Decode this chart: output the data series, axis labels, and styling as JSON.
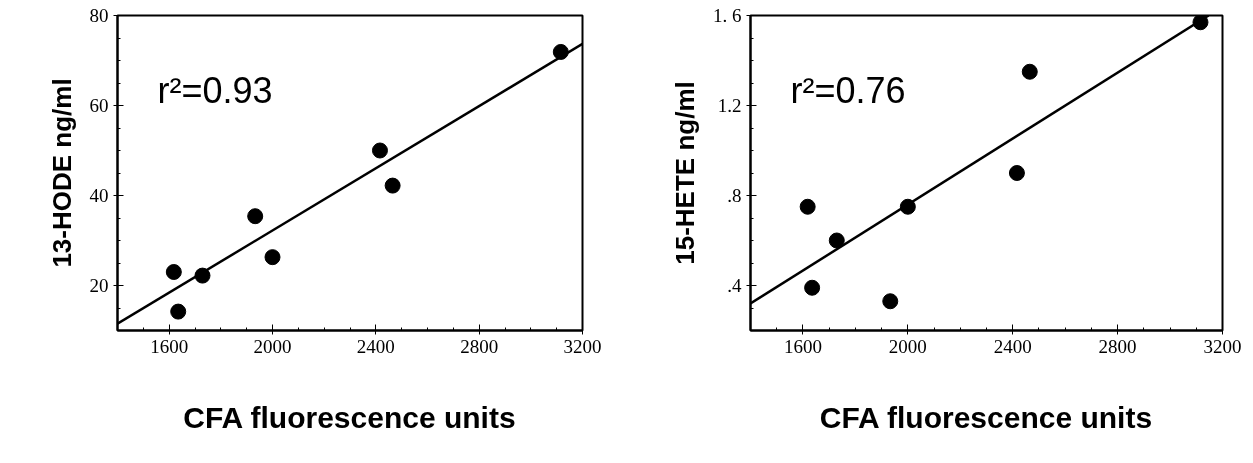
{
  "chart_data": [
    {
      "type": "scatter",
      "xlabel": "CFA fluorescence units",
      "ylabel": "13-HODE ng/ml",
      "annotations": [
        "r²=0.93"
      ],
      "grid": false,
      "xlim": [
        1400,
        3200
      ],
      "xticks": [
        1600,
        2000,
        2400,
        2800,
        3200
      ],
      "ylim": [
        10,
        80
      ],
      "yticks": [
        20,
        40,
        60,
        80
      ],
      "series": [
        {
          "marker": "circle",
          "color": "#000000",
          "x": [
            1618,
            1635,
            1729,
            1933,
            2000,
            2416,
            2465,
            3116
          ],
          "values": [
            23.0,
            14.2,
            22.2,
            35.4,
            26.3,
            50.0,
            42.2,
            71.9
          ]
        },
        {
          "type": "line",
          "color": "#000000",
          "x": [
            1400,
            3200
          ],
          "values": [
            11.5,
            73.7
          ]
        }
      ]
    },
    {
      "type": "scatter",
      "xlabel": "CFA fluorescence units",
      "ylabel": "15-HETE ng/ml",
      "annotations": [
        "r²=0.76"
      ],
      "grid": false,
      "xlim": [
        1400,
        3200
      ],
      "xticks": [
        1600,
        2000,
        2400,
        2800,
        3200
      ],
      "ylim": [
        0.2,
        1.6
      ],
      "yticks": [
        {
          "value": 0.4,
          "label": ".4"
        },
        {
          "value": 0.8,
          "label": ".8"
        },
        {
          "value": 1.2,
          "label": "1.2"
        },
        {
          "value": 1.6,
          "label": "1. 6"
        }
      ],
      "series": [
        {
          "marker": "circle",
          "color": "#000000",
          "x": [
            1618,
            1635,
            1729,
            1933,
            2000,
            2416,
            2465,
            3116
          ],
          "values": [
            0.75,
            0.39,
            0.6,
            0.33,
            0.75,
            0.9,
            1.35,
            1.57
          ]
        },
        {
          "type": "line",
          "color": "#000000",
          "x": [
            1400,
            3147
          ],
          "values": [
            0.32,
            1.6
          ]
        }
      ]
    }
  ]
}
